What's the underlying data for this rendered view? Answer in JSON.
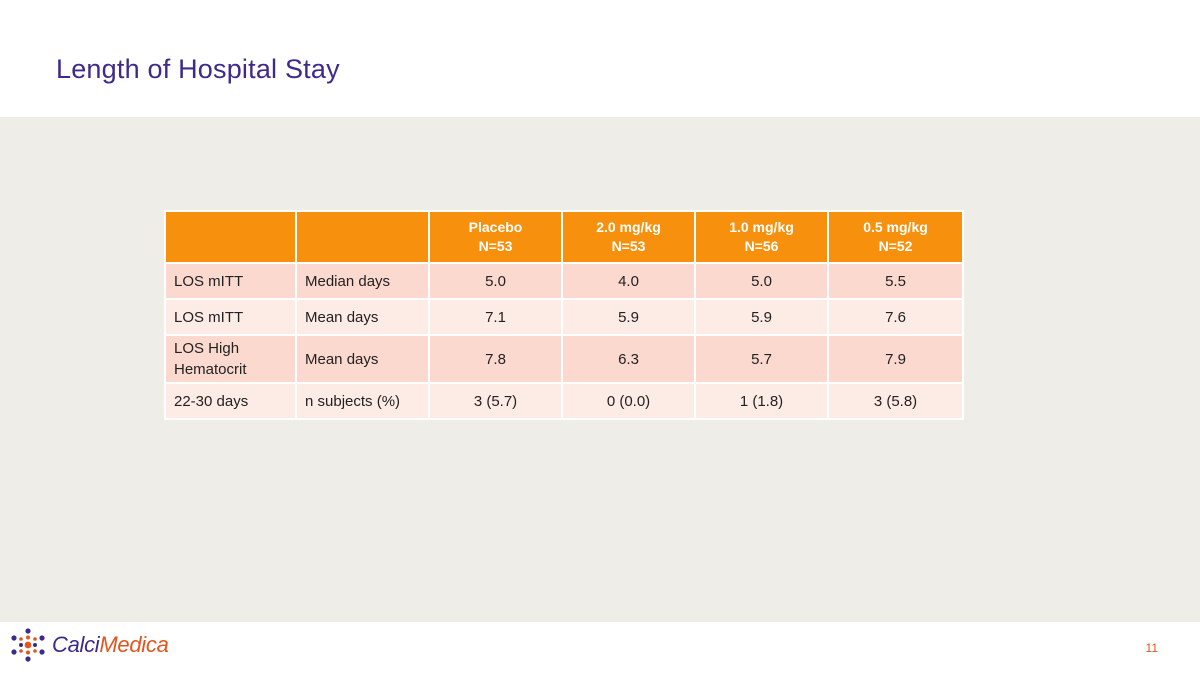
{
  "slide": {
    "title": "Length of Hospital Stay",
    "page_number": "11"
  },
  "table": {
    "header": [
      {
        "line1": "",
        "line2": ""
      },
      {
        "line1": "",
        "line2": ""
      },
      {
        "line1": "Placebo",
        "line2": "N=53"
      },
      {
        "line1": "2.0 mg/kg",
        "line2": "N=53"
      },
      {
        "line1": "1.0 mg/kg",
        "line2": "N=56"
      },
      {
        "line1": "0.5 mg/kg",
        "line2": "N=52"
      }
    ],
    "rows": [
      {
        "label": "LOS mITT",
        "metric": "Median days",
        "values": [
          "5.0",
          "4.0",
          "5.0",
          "5.5"
        ]
      },
      {
        "label": "LOS mITT",
        "metric": "Mean days",
        "values": [
          "7.1",
          "5.9",
          "5.9",
          "7.6"
        ]
      },
      {
        "label_line1": "LOS High",
        "label_line2": "Hematocrit",
        "metric": "Mean days",
        "values": [
          "7.8",
          "6.3",
          "5.7",
          "7.9"
        ]
      },
      {
        "label": "22-30 days",
        "metric": "n subjects (%)",
        "values": [
          "3 (5.7)",
          "0 (0.0)",
          "1 (1.8)",
          "3 (5.8)"
        ]
      }
    ]
  },
  "logo": {
    "part1": "Calci",
    "part2": "Medica",
    "icon": "molecule-dots-icon"
  },
  "colors": {
    "title": "#3c2a8c",
    "header_bg": "#f7900c",
    "row_dark": "#fbd9cf",
    "row_light": "#fdebe5",
    "content_bg": "#efede8",
    "accent": "#e3551e"
  }
}
